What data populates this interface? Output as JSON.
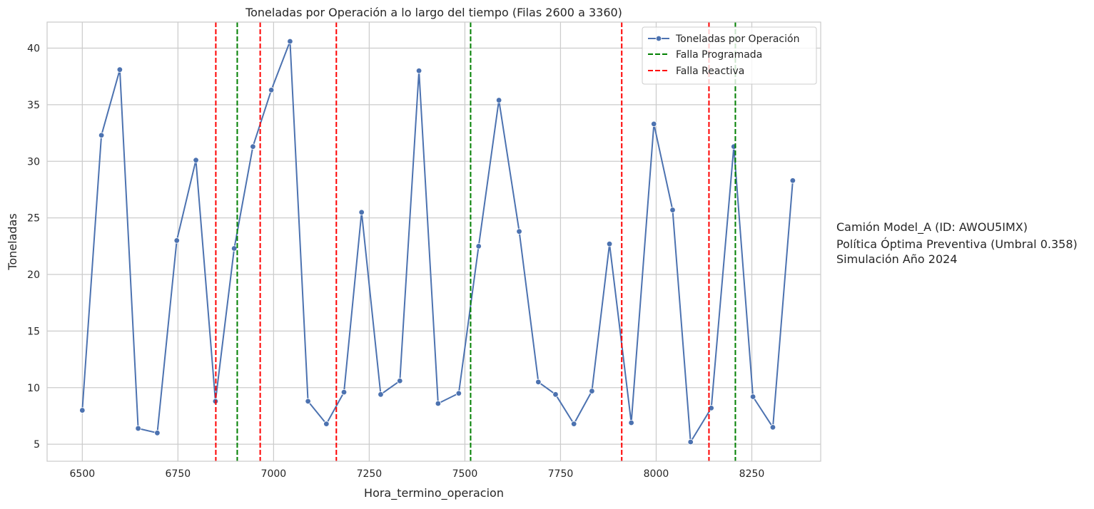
{
  "chart_data": {
    "type": "line",
    "title": "Toneladas por Operación a lo largo del tiempo (Filas 2600 a 3360)",
    "xlabel": "Hora_termino_operacion",
    "ylabel": "Toneladas",
    "xlim": [
      6408,
      8430
    ],
    "ylim": [
      3.5,
      42.3
    ],
    "x_ticks": [
      6500,
      6750,
      7000,
      7250,
      7500,
      7750,
      8000,
      8250
    ],
    "y_ticks": [
      5,
      10,
      15,
      20,
      25,
      30,
      35,
      40
    ],
    "grid": true,
    "legend_position": "top-right",
    "series": [
      {
        "name": "Toneladas por Operación",
        "color": "#4c72b0",
        "marker": "circle",
        "points": [
          {
            "x": 6500,
            "y": 8.0
          },
          {
            "x": 6550,
            "y": 32.3
          },
          {
            "x": 6598,
            "y": 38.1
          },
          {
            "x": 6646,
            "y": 6.4
          },
          {
            "x": 6696,
            "y": 6.0
          },
          {
            "x": 6747,
            "y": 23.0
          },
          {
            "x": 6797,
            "y": 30.1
          },
          {
            "x": 6848,
            "y": 8.8
          },
          {
            "x": 6897,
            "y": 22.3
          },
          {
            "x": 6946,
            "y": 31.3
          },
          {
            "x": 6994,
            "y": 36.3
          },
          {
            "x": 7043,
            "y": 40.6
          },
          {
            "x": 7090,
            "y": 8.8
          },
          {
            "x": 7138,
            "y": 6.8
          },
          {
            "x": 7184,
            "y": 9.6
          },
          {
            "x": 7230,
            "y": 25.5
          },
          {
            "x": 7280,
            "y": 9.4
          },
          {
            "x": 7330,
            "y": 10.6
          },
          {
            "x": 7380,
            "y": 38.0
          },
          {
            "x": 7430,
            "y": 8.6
          },
          {
            "x": 7484,
            "y": 9.5
          },
          {
            "x": 7536,
            "y": 22.5
          },
          {
            "x": 7589,
            "y": 35.4
          },
          {
            "x": 7642,
            "y": 23.8
          },
          {
            "x": 7692,
            "y": 10.5
          },
          {
            "x": 7737,
            "y": 9.4
          },
          {
            "x": 7785,
            "y": 6.8
          },
          {
            "x": 7832,
            "y": 9.7
          },
          {
            "x": 7878,
            "y": 22.7
          },
          {
            "x": 7935,
            "y": 6.9
          },
          {
            "x": 7994,
            "y": 33.3
          },
          {
            "x": 8043,
            "y": 25.7
          },
          {
            "x": 8090,
            "y": 5.2
          },
          {
            "x": 8144,
            "y": 8.2
          },
          {
            "x": 8203,
            "y": 31.3
          },
          {
            "x": 8253,
            "y": 9.2
          },
          {
            "x": 8305,
            "y": 6.5
          },
          {
            "x": 8357,
            "y": 28.3
          }
        ]
      }
    ],
    "vlines": [
      {
        "name": "Falla Programada",
        "color": "#008000",
        "style": "dashed",
        "x": [
          6905,
          7515,
          8207
        ]
      },
      {
        "name": "Falla Reactiva",
        "color": "#ff0000",
        "style": "dashed",
        "x": [
          6849,
          6965,
          7164,
          7910,
          8138
        ]
      }
    ],
    "annotation": {
      "lines": [
        "Camión Model_A (ID: AWOU5IMX)",
        "Política Óptima Preventiva (Umbral 0.358)",
        "Simulación Año 2024"
      ]
    }
  }
}
